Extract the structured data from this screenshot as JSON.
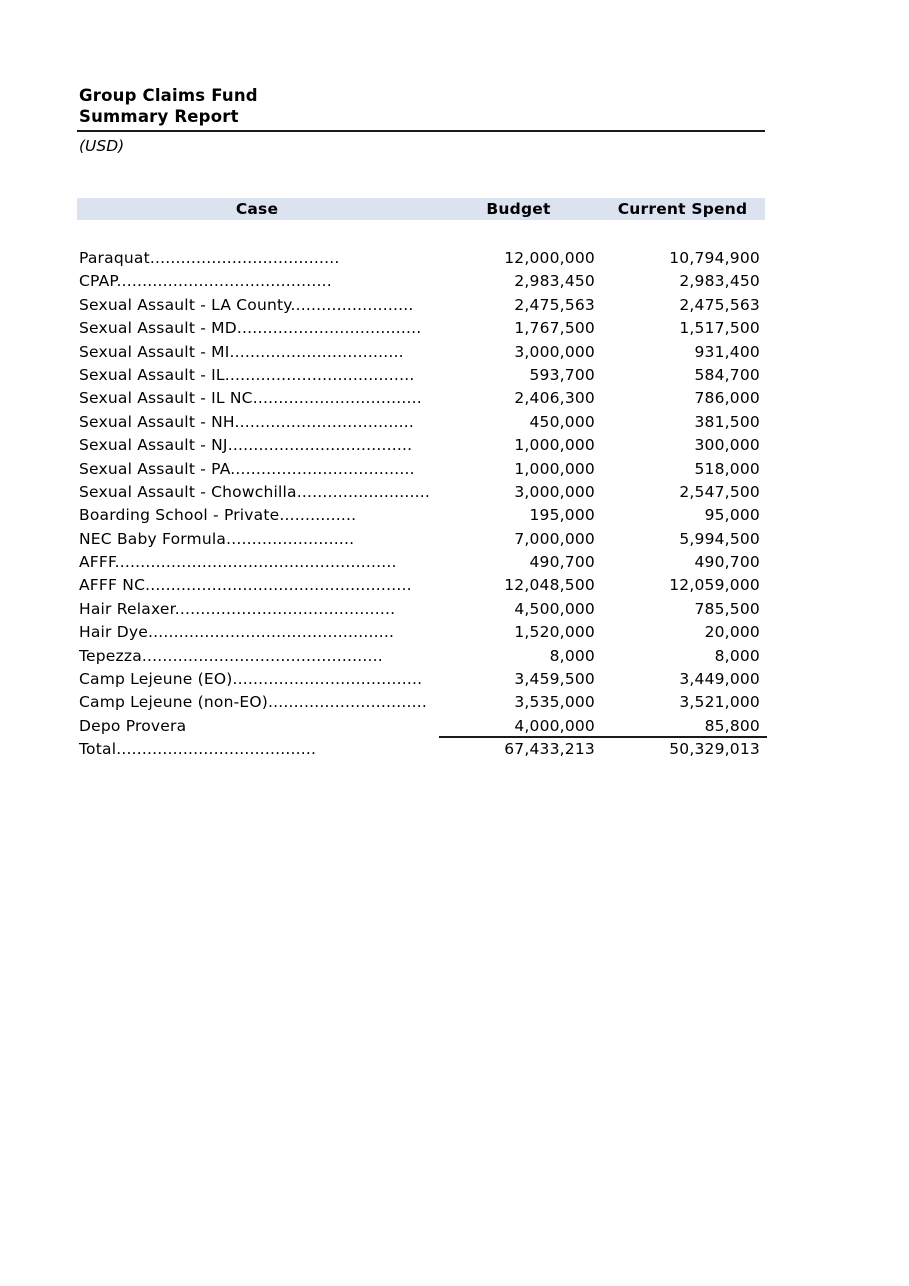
{
  "report": {
    "title": "Group Claims Fund",
    "subtitle": "Summary Report",
    "currency_note": "(USD)"
  },
  "table": {
    "header_bg": "#dbe3f0",
    "headers": {
      "case": "Case",
      "budget": "Budget",
      "current_spend": "Current Spend"
    },
    "rows": [
      {
        "case": "Paraquat.....................................",
        "budget": "12,000,000",
        "current_spend": "10,794,900"
      },
      {
        "case": "CPAP..........................................",
        "budget": "2,983,450",
        "current_spend": "2,983,450"
      },
      {
        "case": "Sexual Assault - LA County........................",
        "budget": "2,475,563",
        "current_spend": "2,475,563"
      },
      {
        "case": "Sexual Assault - MD....................................",
        "budget": "1,767,500",
        "current_spend": "1,517,500"
      },
      {
        "case": "Sexual Assault - MI..................................",
        "budget": "3,000,000",
        "current_spend": "931,400"
      },
      {
        "case": "Sexual Assault - IL.....................................",
        "budget": "593,700",
        "current_spend": "584,700"
      },
      {
        "case": "Sexual Assault - IL NC.................................",
        "budget": "2,406,300",
        "current_spend": "786,000"
      },
      {
        "case": "Sexual Assault - NH...................................",
        "budget": "450,000",
        "current_spend": "381,500"
      },
      {
        "case": "Sexual Assault - NJ....................................",
        "budget": "1,000,000",
        "current_spend": "300,000"
      },
      {
        "case": "Sexual Assault - PA....................................",
        "budget": "1,000,000",
        "current_spend": "518,000"
      },
      {
        "case": "Sexual Assault - Chowchilla..........................",
        "budget": "3,000,000",
        "current_spend": "2,547,500"
      },
      {
        "case": "Boarding School - Private...............",
        "budget": "195,000",
        "current_spend": "95,000"
      },
      {
        "case": "NEC Baby Formula.........................",
        "budget": "7,000,000",
        "current_spend": "5,994,500"
      },
      {
        "case": "AFFF.......................................................",
        "budget": "490,700",
        "current_spend": "490,700"
      },
      {
        "case": "AFFF NC....................................................",
        "budget": "12,048,500",
        "current_spend": "12,059,000"
      },
      {
        "case": "Hair Relaxer...........................................",
        "budget": "4,500,000",
        "current_spend": "785,500"
      },
      {
        "case": "Hair Dye................................................",
        "budget": "1,520,000",
        "current_spend": "20,000"
      },
      {
        "case": "Tepezza...............................................",
        "budget": "8,000",
        "current_spend": "8,000"
      },
      {
        "case": "Camp Lejeune (EO).....................................",
        "budget": "3,459,500",
        "current_spend": "3,449,000"
      },
      {
        "case": "Camp Lejeune (non-EO)...............................",
        "budget": "3,535,000",
        "current_spend": "3,521,000"
      },
      {
        "case": "Depo Provera",
        "budget": "4,000,000",
        "current_spend": "85,800",
        "rule_below": true
      },
      {
        "case": "Total.......................................",
        "budget": "67,433,213",
        "current_spend": "50,329,013",
        "is_total": true
      }
    ]
  }
}
